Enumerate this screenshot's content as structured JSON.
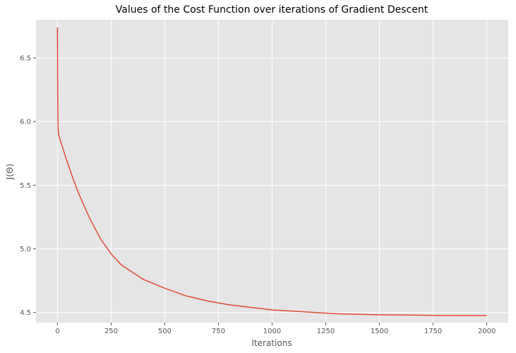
{
  "chart_data": {
    "type": "line",
    "title": "Values of the Cost Function over iterations of Gradient Descent",
    "xlabel": "Iterations",
    "ylabel": "J(Θ)",
    "xlim": [
      -100,
      2100
    ],
    "ylim": [
      4.42,
      6.8
    ],
    "xticks": [
      0,
      250,
      500,
      750,
      1000,
      1250,
      1500,
      1750,
      2000
    ],
    "yticks": [
      4.5,
      5.0,
      5.5,
      6.0,
      6.5
    ],
    "grid": true,
    "background": "#e5e5e5",
    "grid_color": "#ffffff",
    "series": [
      {
        "color": "#e24a33",
        "x": [
          0,
          1,
          2,
          3,
          5,
          10,
          25,
          50,
          75,
          100,
          150,
          200,
          250,
          300,
          400,
          500,
          600,
          700,
          800,
          900,
          1000,
          1100,
          1200,
          1250,
          1300,
          1400,
          1500,
          1600,
          1700,
          1750,
          1800,
          1900,
          2000
        ],
        "y": [
          6.74,
          6.25,
          6.05,
          5.95,
          5.9,
          5.87,
          5.79,
          5.66,
          5.54,
          5.43,
          5.24,
          5.08,
          4.96,
          4.87,
          4.76,
          4.69,
          4.63,
          4.59,
          4.56,
          4.54,
          4.52,
          4.51,
          4.5,
          4.495,
          4.49,
          4.485,
          4.482,
          4.48,
          4.478,
          4.477,
          4.477,
          4.476,
          4.476
        ]
      }
    ]
  }
}
